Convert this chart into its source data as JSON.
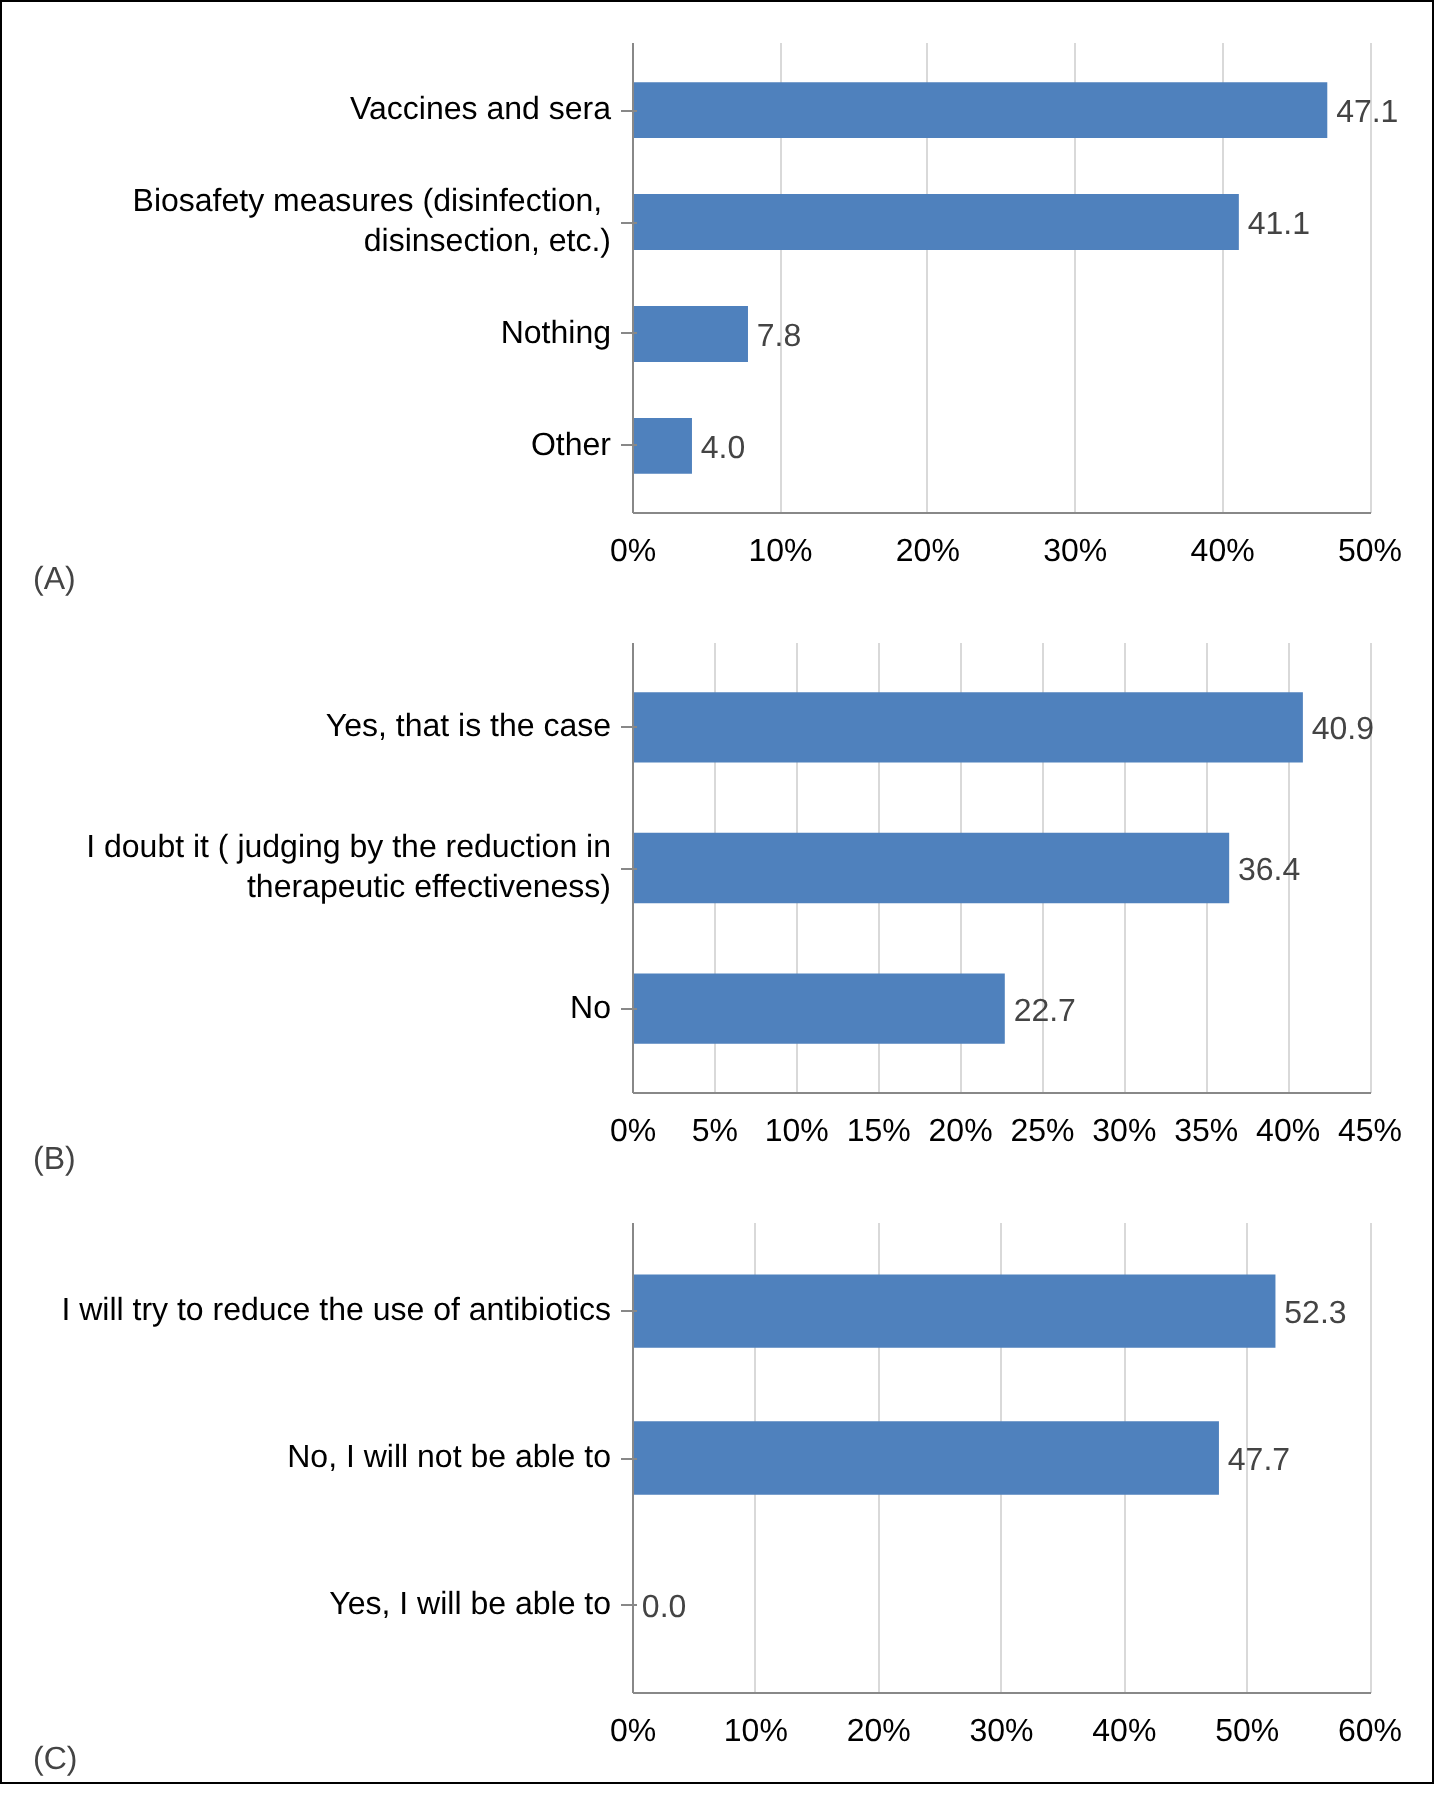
{
  "chart_data": [
    {
      "type": "bar",
      "orientation": "horizontal",
      "categories": [
        "Vaccines and sera",
        "Biosafety  measures (disinfection,\ndisinsection, etc.)",
        "Nothing",
        "Other"
      ],
      "values": [
        47.1,
        41.1,
        7.8,
        4.0
      ],
      "value_labels": [
        "47.1",
        "41.1",
        "7.8",
        "4.0"
      ],
      "color": "#4f81bd",
      "xlim": [
        0,
        50
      ],
      "xticks": [
        {
          "value": 0,
          "label": "0%"
        },
        {
          "value": 10,
          "label": "10%"
        },
        {
          "value": 20,
          "label": "20%"
        },
        {
          "value": 30,
          "label": "30%"
        },
        {
          "value": 40,
          "label": "40%"
        },
        {
          "value": 50,
          "label": "50%"
        }
      ],
      "grid": "x",
      "annotations": [
        "(A)"
      ]
    },
    {
      "type": "bar",
      "orientation": "horizontal",
      "categories": [
        "Yes, that is the case",
        "I doubt it ( judging by the reduction in\ntherapeutic effectiveness)",
        "No"
      ],
      "values": [
        40.9,
        36.4,
        22.7
      ],
      "value_labels": [
        "40.9",
        "36.4",
        "22.7"
      ],
      "color": "#4f81bd",
      "xlim": [
        0,
        45
      ],
      "xticks": [
        {
          "value": 0,
          "label": "0%"
        },
        {
          "value": 5,
          "label": "5%"
        },
        {
          "value": 10,
          "label": "10%"
        },
        {
          "value": 15,
          "label": "15%"
        },
        {
          "value": 20,
          "label": "20%"
        },
        {
          "value": 25,
          "label": "25%"
        },
        {
          "value": 30,
          "label": "30%"
        },
        {
          "value": 35,
          "label": "35%"
        },
        {
          "value": 40,
          "label": "40%"
        },
        {
          "value": 45,
          "label": "45%"
        }
      ],
      "grid": "x",
      "annotations": [
        "(B)"
      ]
    },
    {
      "type": "bar",
      "orientation": "horizontal",
      "categories": [
        "I will try to reduce the use of antibiotics",
        "No, I will not be able to",
        "Yes, I will be able to"
      ],
      "values": [
        52.3,
        47.7,
        0.0
      ],
      "value_labels": [
        "52.3",
        "47.7",
        "0.0"
      ],
      "color": "#4f81bd",
      "xlim": [
        0,
        60
      ],
      "xticks": [
        {
          "value": 0,
          "label": "0%"
        },
        {
          "value": 10,
          "label": "10%"
        },
        {
          "value": 20,
          "label": "20%"
        },
        {
          "value": 30,
          "label": "30%"
        },
        {
          "value": 40,
          "label": "40%"
        },
        {
          "value": 50,
          "label": "50%"
        },
        {
          "value": 60,
          "label": "60%"
        }
      ],
      "grid": "x",
      "annotations": [
        "(C)"
      ]
    }
  ]
}
